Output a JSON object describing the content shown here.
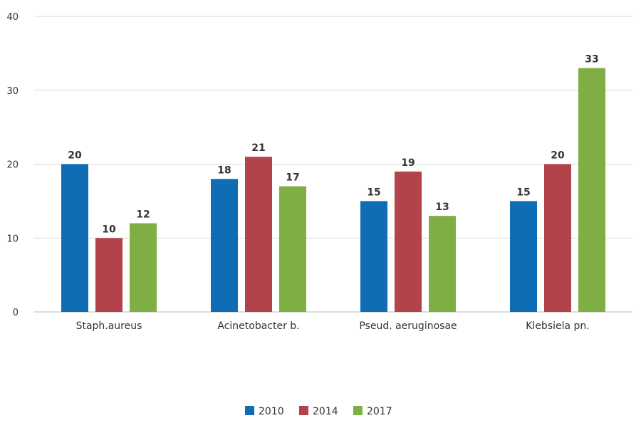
{
  "chart_data": {
    "type": "bar",
    "categories": [
      "Staph.aureus",
      "Acinetobacter b.",
      "Pseud. aeruginosae",
      "Klebsiela pn."
    ],
    "series": [
      {
        "name": "2010",
        "color": "#0f6db5",
        "values": [
          20,
          18,
          15,
          15
        ]
      },
      {
        "name": "2014",
        "color": "#b2434a",
        "values": [
          10,
          21,
          19,
          20
        ]
      },
      {
        "name": "2017",
        "color": "#7fae44",
        "values": [
          12,
          17,
          13,
          33
        ]
      }
    ],
    "yticks": [
      0,
      10,
      20,
      30,
      40
    ],
    "ylim": [
      0,
      40
    ],
    "grid": true,
    "legend_position": "bottom"
  }
}
